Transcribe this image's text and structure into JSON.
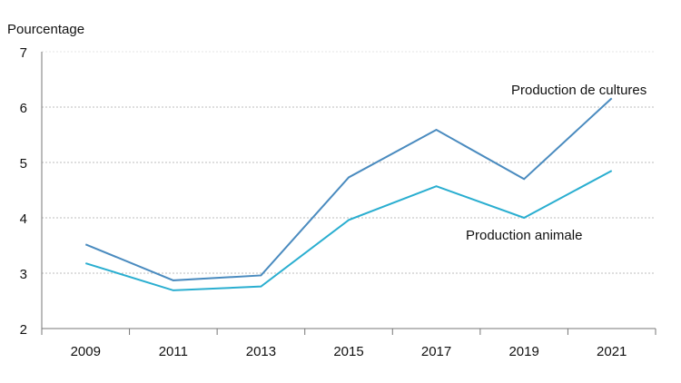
{
  "chart_data": {
    "type": "line",
    "title": "",
    "ylabel": "Pourcentage",
    "xlabel": "",
    "categories": [
      "2009",
      "2011",
      "2013",
      "2015",
      "2017",
      "2019",
      "2021"
    ],
    "ylim": [
      2,
      7
    ],
    "yticks": [
      2,
      3,
      4,
      5,
      6,
      7
    ],
    "grid": true,
    "series": [
      {
        "name": "Production de cultures",
        "color": "#4a8bbf",
        "values": [
          3.52,
          2.87,
          2.96,
          4.73,
          5.59,
          4.7,
          6.16
        ]
      },
      {
        "name": "Production animale",
        "color": "#2aaed0",
        "values": [
          3.18,
          2.69,
          2.76,
          3.96,
          4.57,
          4.0,
          4.85
        ]
      }
    ]
  }
}
